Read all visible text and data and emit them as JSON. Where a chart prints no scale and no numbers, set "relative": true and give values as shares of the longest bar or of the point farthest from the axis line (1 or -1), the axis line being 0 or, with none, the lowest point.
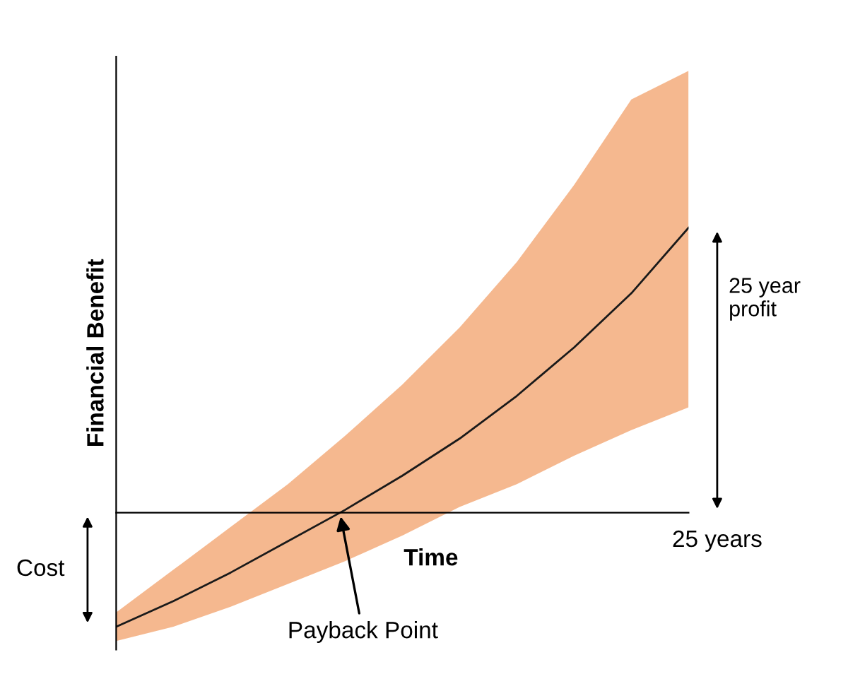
{
  "chart_data": {
    "type": "line",
    "relative": true,
    "xlabel": "Time",
    "ylabel": "Financial Benefit",
    "categories": [
      null,
      null,
      null,
      null,
      null,
      null,
      null,
      null,
      null,
      null,
      null
    ],
    "series": [
      {
        "color": "#1a1a1a",
        "values": [
          -0.4,
          -0.31,
          -0.21,
          -0.1,
          0.01,
          0.13,
          0.26,
          0.41,
          0.58,
          0.77,
          1.0
        ],
        "lower": [
          -0.45,
          -0.4,
          -0.33,
          -0.25,
          -0.17,
          -0.08,
          0.02,
          0.1,
          0.2,
          0.29,
          0.37
        ],
        "upper": [
          -0.35,
          -0.2,
          -0.05,
          0.1,
          0.27,
          0.45,
          0.65,
          0.88,
          1.15,
          1.45,
          1.55
        ]
      }
    ],
    "annotations": [
      "Cost",
      "25 year\nprofit",
      "Payback Point",
      "25 years"
    ],
    "grid": false,
    "legend": false,
    "marker": "none",
    "line_style": "solid"
  }
}
